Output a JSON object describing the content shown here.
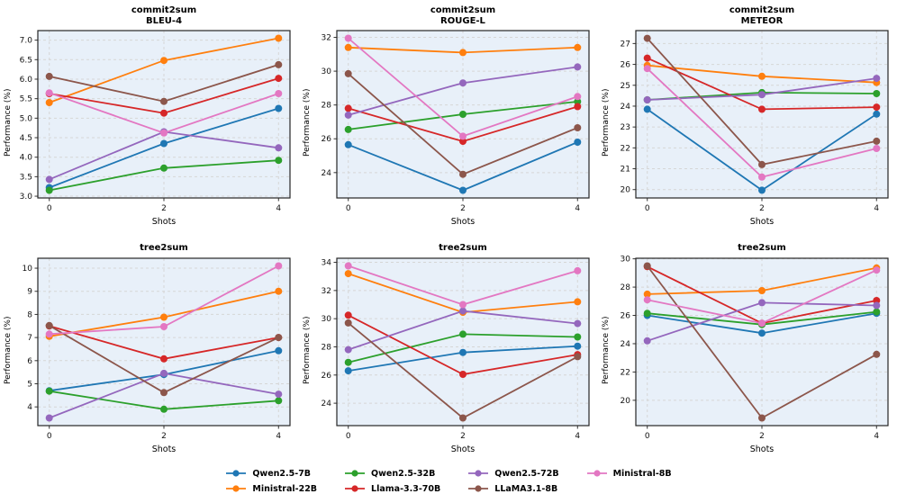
{
  "figure": {
    "xlabel": "Shots",
    "ylabel": "Performance (%)",
    "background_color": "#ffffff",
    "axes_background": "#e8f0f9",
    "grid_color": "#d6d6d6",
    "spine_color": "#262626",
    "tick_color": "#333333"
  },
  "models": [
    {
      "name": "Qwen2.5-7B",
      "color": "#1f77b4"
    },
    {
      "name": "Ministral-22B",
      "color": "#ff7f0e"
    },
    {
      "name": "Qwen2.5-32B",
      "color": "#2ca02c"
    },
    {
      "name": "Llama-3.3-70B",
      "color": "#d62728"
    },
    {
      "name": "Qwen2.5-72B",
      "color": "#9467bd"
    },
    {
      "name": "LLaMA3.1-8B",
      "color": "#8c564b"
    },
    {
      "name": "Ministral-8B",
      "color": "#e377c2"
    }
  ],
  "legend": {
    "order": [
      "Qwen2.5-7B",
      "Ministral-22B",
      "Qwen2.5-32B",
      "Llama-3.3-70B",
      "Qwen2.5-72B",
      "LLaMA3.1-8B",
      "Ministral-8B"
    ]
  },
  "chart_data": [
    {
      "type": "line",
      "title": "commit2sum",
      "subtitle": "BLEU-4",
      "xlabel": "Shots",
      "ylabel": "Performance (%)",
      "x": [
        0,
        2,
        4
      ],
      "xticks": [
        0,
        2,
        4
      ],
      "xlim": [
        -0.2,
        4.2
      ],
      "ylim": [
        2.955,
        7.245
      ],
      "yticks": [
        3.0,
        3.5,
        4.0,
        4.5,
        5.0,
        5.5,
        6.0,
        6.5,
        7.0
      ],
      "ytick_labels": [
        "3.0",
        "3.5",
        "4.0",
        "4.5",
        "5.0",
        "5.5",
        "6.0",
        "6.5",
        "7.0"
      ],
      "grid": true,
      "series": [
        {
          "name": "Qwen2.5-7B",
          "values": [
            3.22,
            4.35,
            5.25
          ]
        },
        {
          "name": "Ministral-22B",
          "values": [
            5.4,
            6.48,
            7.05
          ]
        },
        {
          "name": "Qwen2.5-32B",
          "values": [
            3.15,
            3.72,
            3.92
          ]
        },
        {
          "name": "Llama-3.3-70B",
          "values": [
            5.63,
            5.13,
            6.02
          ]
        },
        {
          "name": "Qwen2.5-72B",
          "values": [
            3.43,
            4.65,
            4.24
          ]
        },
        {
          "name": "LLaMA3.1-8B",
          "values": [
            6.07,
            5.43,
            6.37
          ]
        },
        {
          "name": "Ministral-8B",
          "values": [
            5.65,
            4.62,
            5.63
          ]
        }
      ]
    },
    {
      "type": "line",
      "title": "commit2sum",
      "subtitle": "ROUGE-L",
      "xlabel": "Shots",
      "ylabel": "Performance (%)",
      "x": [
        0,
        2,
        4
      ],
      "xticks": [
        0,
        2,
        4
      ],
      "xlim": [
        -0.2,
        4.2
      ],
      "ylim": [
        22.5,
        32.4
      ],
      "yticks": [
        24,
        26,
        28,
        30,
        32
      ],
      "ytick_labels": [
        "24",
        "26",
        "28",
        "30",
        "32"
      ],
      "grid": true,
      "series": [
        {
          "name": "Qwen2.5-7B",
          "values": [
            25.65,
            22.95,
            25.8
          ]
        },
        {
          "name": "Ministral-22B",
          "values": [
            31.4,
            31.1,
            31.4
          ]
        },
        {
          "name": "Qwen2.5-32B",
          "values": [
            26.55,
            27.45,
            28.2
          ]
        },
        {
          "name": "Llama-3.3-70B",
          "values": [
            27.8,
            25.85,
            27.9
          ]
        },
        {
          "name": "Qwen2.5-72B",
          "values": [
            27.4,
            29.3,
            30.25
          ]
        },
        {
          "name": "LLaMA3.1-8B",
          "values": [
            29.85,
            23.9,
            26.65
          ]
        },
        {
          "name": "Ministral-8B",
          "values": [
            31.95,
            26.15,
            28.5
          ]
        }
      ]
    },
    {
      "type": "line",
      "title": "commit2sum",
      "subtitle": "METEOR",
      "xlabel": "Shots",
      "ylabel": "Performance (%)",
      "x": [
        0,
        2,
        4
      ],
      "xticks": [
        0,
        2,
        4
      ],
      "xlim": [
        -0.2,
        4.2
      ],
      "ylim": [
        19.6,
        27.62
      ],
      "yticks": [
        20,
        21,
        22,
        23,
        24,
        25,
        26,
        27
      ],
      "ytick_labels": [
        "20",
        "21",
        "22",
        "23",
        "24",
        "25",
        "26",
        "27"
      ],
      "grid": true,
      "series": [
        {
          "name": "Qwen2.5-7B",
          "values": [
            23.85,
            19.97,
            23.62
          ]
        },
        {
          "name": "Ministral-22B",
          "values": [
            25.95,
            25.43,
            25.13
          ]
        },
        {
          "name": "Qwen2.5-32B",
          "values": [
            24.3,
            24.65,
            24.6
          ]
        },
        {
          "name": "Llama-3.3-70B",
          "values": [
            26.3,
            23.85,
            23.95
          ]
        },
        {
          "name": "Qwen2.5-72B",
          "values": [
            24.3,
            24.55,
            25.33
          ]
        },
        {
          "name": "LLaMA3.1-8B",
          "values": [
            27.25,
            21.2,
            22.32
          ]
        },
        {
          "name": "Ministral-8B",
          "values": [
            25.8,
            20.6,
            21.97
          ]
        }
      ]
    },
    {
      "type": "line",
      "title": "tree2sum",
      "subtitle": "",
      "xlabel": "Shots",
      "ylabel": "Performance (%)",
      "x": [
        0,
        2,
        4
      ],
      "xticks": [
        0,
        2,
        4
      ],
      "xlim": [
        -0.2,
        4.2
      ],
      "ylim": [
        3.19,
        10.43
      ],
      "yticks": [
        4,
        5,
        6,
        7,
        8,
        9,
        10
      ],
      "ytick_labels": [
        "4",
        "5",
        "6",
        "7",
        "8",
        "9",
        "10"
      ],
      "grid": true,
      "series": [
        {
          "name": "Qwen2.5-7B",
          "values": [
            4.7,
            5.4,
            6.43
          ]
        },
        {
          "name": "Ministral-22B",
          "values": [
            7.05,
            7.88,
            9.0
          ]
        },
        {
          "name": "Qwen2.5-32B",
          "values": [
            4.68,
            3.9,
            4.27
          ]
        },
        {
          "name": "Llama-3.3-70B",
          "values": [
            7.5,
            6.08,
            7.0
          ]
        },
        {
          "name": "Qwen2.5-72B",
          "values": [
            3.52,
            5.45,
            4.55
          ]
        },
        {
          "name": "LLaMA3.1-8B",
          "values": [
            7.52,
            4.62,
            7.0
          ]
        },
        {
          "name": "Ministral-8B",
          "values": [
            7.15,
            7.47,
            10.1
          ]
        }
      ]
    },
    {
      "type": "line",
      "title": "tree2sum",
      "subtitle": "",
      "xlabel": "Shots",
      "ylabel": "Performance (%)",
      "x": [
        0,
        2,
        4
      ],
      "xticks": [
        0,
        2,
        4
      ],
      "xlim": [
        -0.2,
        4.2
      ],
      "ylim": [
        22.41,
        34.29
      ],
      "yticks": [
        24,
        26,
        28,
        30,
        32,
        34
      ],
      "ytick_labels": [
        "24",
        "26",
        "28",
        "30",
        "32",
        "34"
      ],
      "grid": true,
      "series": [
        {
          "name": "Qwen2.5-7B",
          "values": [
            26.3,
            27.6,
            28.05
          ]
        },
        {
          "name": "Ministral-22B",
          "values": [
            33.2,
            30.45,
            31.2
          ]
        },
        {
          "name": "Qwen2.5-32B",
          "values": [
            26.9,
            28.9,
            28.7
          ]
        },
        {
          "name": "Llama-3.3-70B",
          "values": [
            30.25,
            26.05,
            27.45
          ]
        },
        {
          "name": "Qwen2.5-72B",
          "values": [
            27.8,
            30.55,
            29.65
          ]
        },
        {
          "name": "LLaMA3.1-8B",
          "values": [
            29.7,
            22.95,
            27.3
          ]
        },
        {
          "name": "Ministral-8B",
          "values": [
            33.75,
            31.0,
            33.4
          ]
        }
      ]
    },
    {
      "type": "line",
      "title": "tree2sum",
      "subtitle": "",
      "xlabel": "Shots",
      "ylabel": "Performance (%)",
      "x": [
        0,
        2,
        4
      ],
      "xticks": [
        0,
        2,
        4
      ],
      "xlim": [
        -0.2,
        4.2
      ],
      "ylim": [
        18.21,
        30.04
      ],
      "yticks": [
        20,
        22,
        24,
        26,
        28,
        30
      ],
      "ytick_labels": [
        "20",
        "22",
        "24",
        "26",
        "28",
        "30"
      ],
      "grid": true,
      "series": [
        {
          "name": "Qwen2.5-7B",
          "values": [
            26.0,
            24.75,
            26.15
          ]
        },
        {
          "name": "Ministral-22B",
          "values": [
            27.5,
            27.75,
            29.35
          ]
        },
        {
          "name": "Qwen2.5-32B",
          "values": [
            26.15,
            25.35,
            26.25
          ]
        },
        {
          "name": "Llama-3.3-70B",
          "values": [
            29.45,
            25.45,
            27.05
          ]
        },
        {
          "name": "Qwen2.5-72B",
          "values": [
            24.2,
            26.9,
            26.7
          ]
        },
        {
          "name": "LLaMA3.1-8B",
          "values": [
            29.5,
            18.75,
            23.25
          ]
        },
        {
          "name": "Ministral-8B",
          "values": [
            27.1,
            25.45,
            29.2
          ]
        }
      ]
    }
  ]
}
